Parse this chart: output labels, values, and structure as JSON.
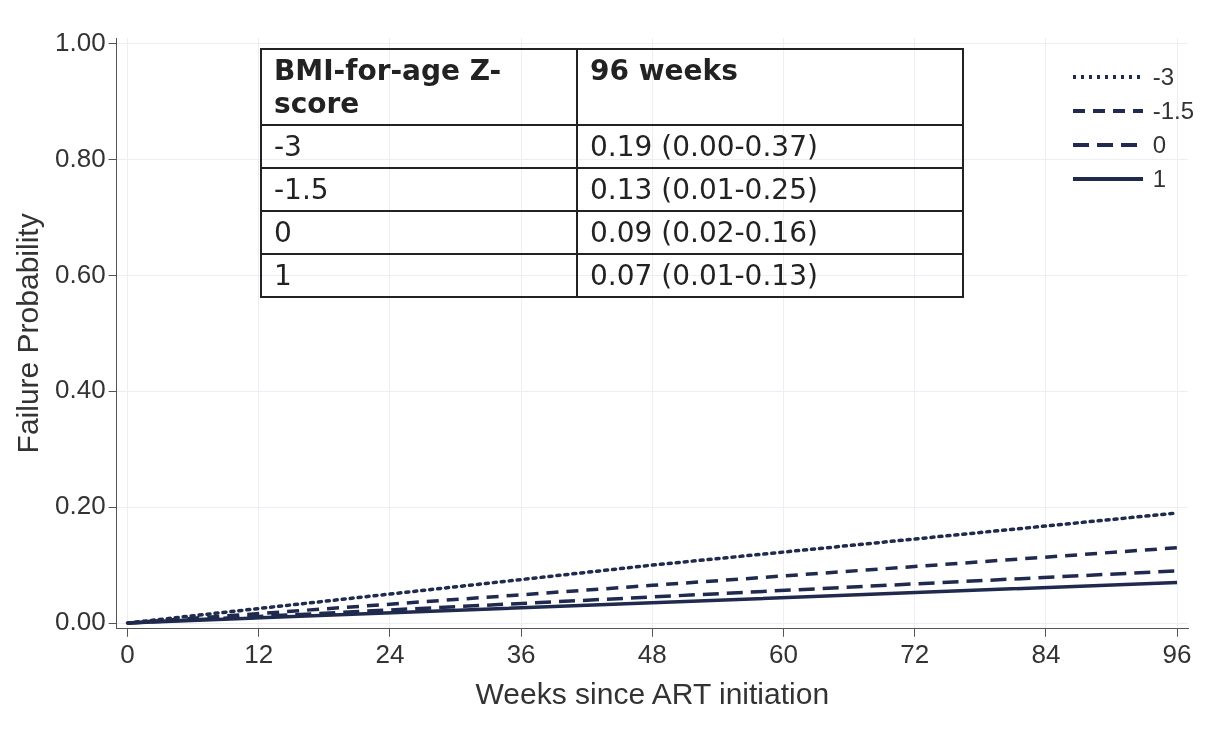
{
  "chart_data": {
    "type": "line",
    "xlabel": "Weeks since ART initiation",
    "ylabel": "Failure Probability",
    "x": [
      0,
      48,
      96
    ],
    "series": [
      {
        "name": "-3",
        "color": "#1f2a4e",
        "line_style": "dotted",
        "values": [
          0,
          0.1,
          0.19
        ]
      },
      {
        "name": "-1.5",
        "color": "#1f2a4e",
        "line_style": "dashed",
        "values": [
          0,
          0.065,
          0.13
        ]
      },
      {
        "name": "0",
        "color": "#1f2a4e",
        "line_style": "dashed",
        "values": [
          0,
          0.045,
          0.09
        ]
      },
      {
        "name": "1",
        "color": "#1f2a4e",
        "line_style": "solid",
        "values": [
          0,
          0.035,
          0.07
        ]
      }
    ],
    "xlim": [
      -1,
      97
    ],
    "xticks": [
      0,
      12,
      24,
      36,
      48,
      60,
      72,
      84,
      96
    ],
    "ylim": [
      -0.01,
      1.01
    ],
    "yticks": [
      {
        "value": 0,
        "label": "0.00"
      },
      {
        "value": 0.2,
        "label": "0.20"
      },
      {
        "value": 0.4,
        "label": "0.40"
      },
      {
        "value": 0.6,
        "label": "0.60"
      },
      {
        "value": 0.8,
        "label": "0.80"
      },
      {
        "value": 1,
        "label": "1.00"
      }
    ],
    "grid": true,
    "legend": "top right",
    "marker": "none",
    "annotations": [
      "BMI-for-age Z-score",
      "96 weeks",
      "-3",
      "0.19 (0.00-0.37)",
      "-1.5",
      "0.13 (0.01-0.25)",
      "0",
      "0.09 (0.02-0.16)",
      "1",
      "0.07 (0.01-0.13)"
    ]
  }
}
